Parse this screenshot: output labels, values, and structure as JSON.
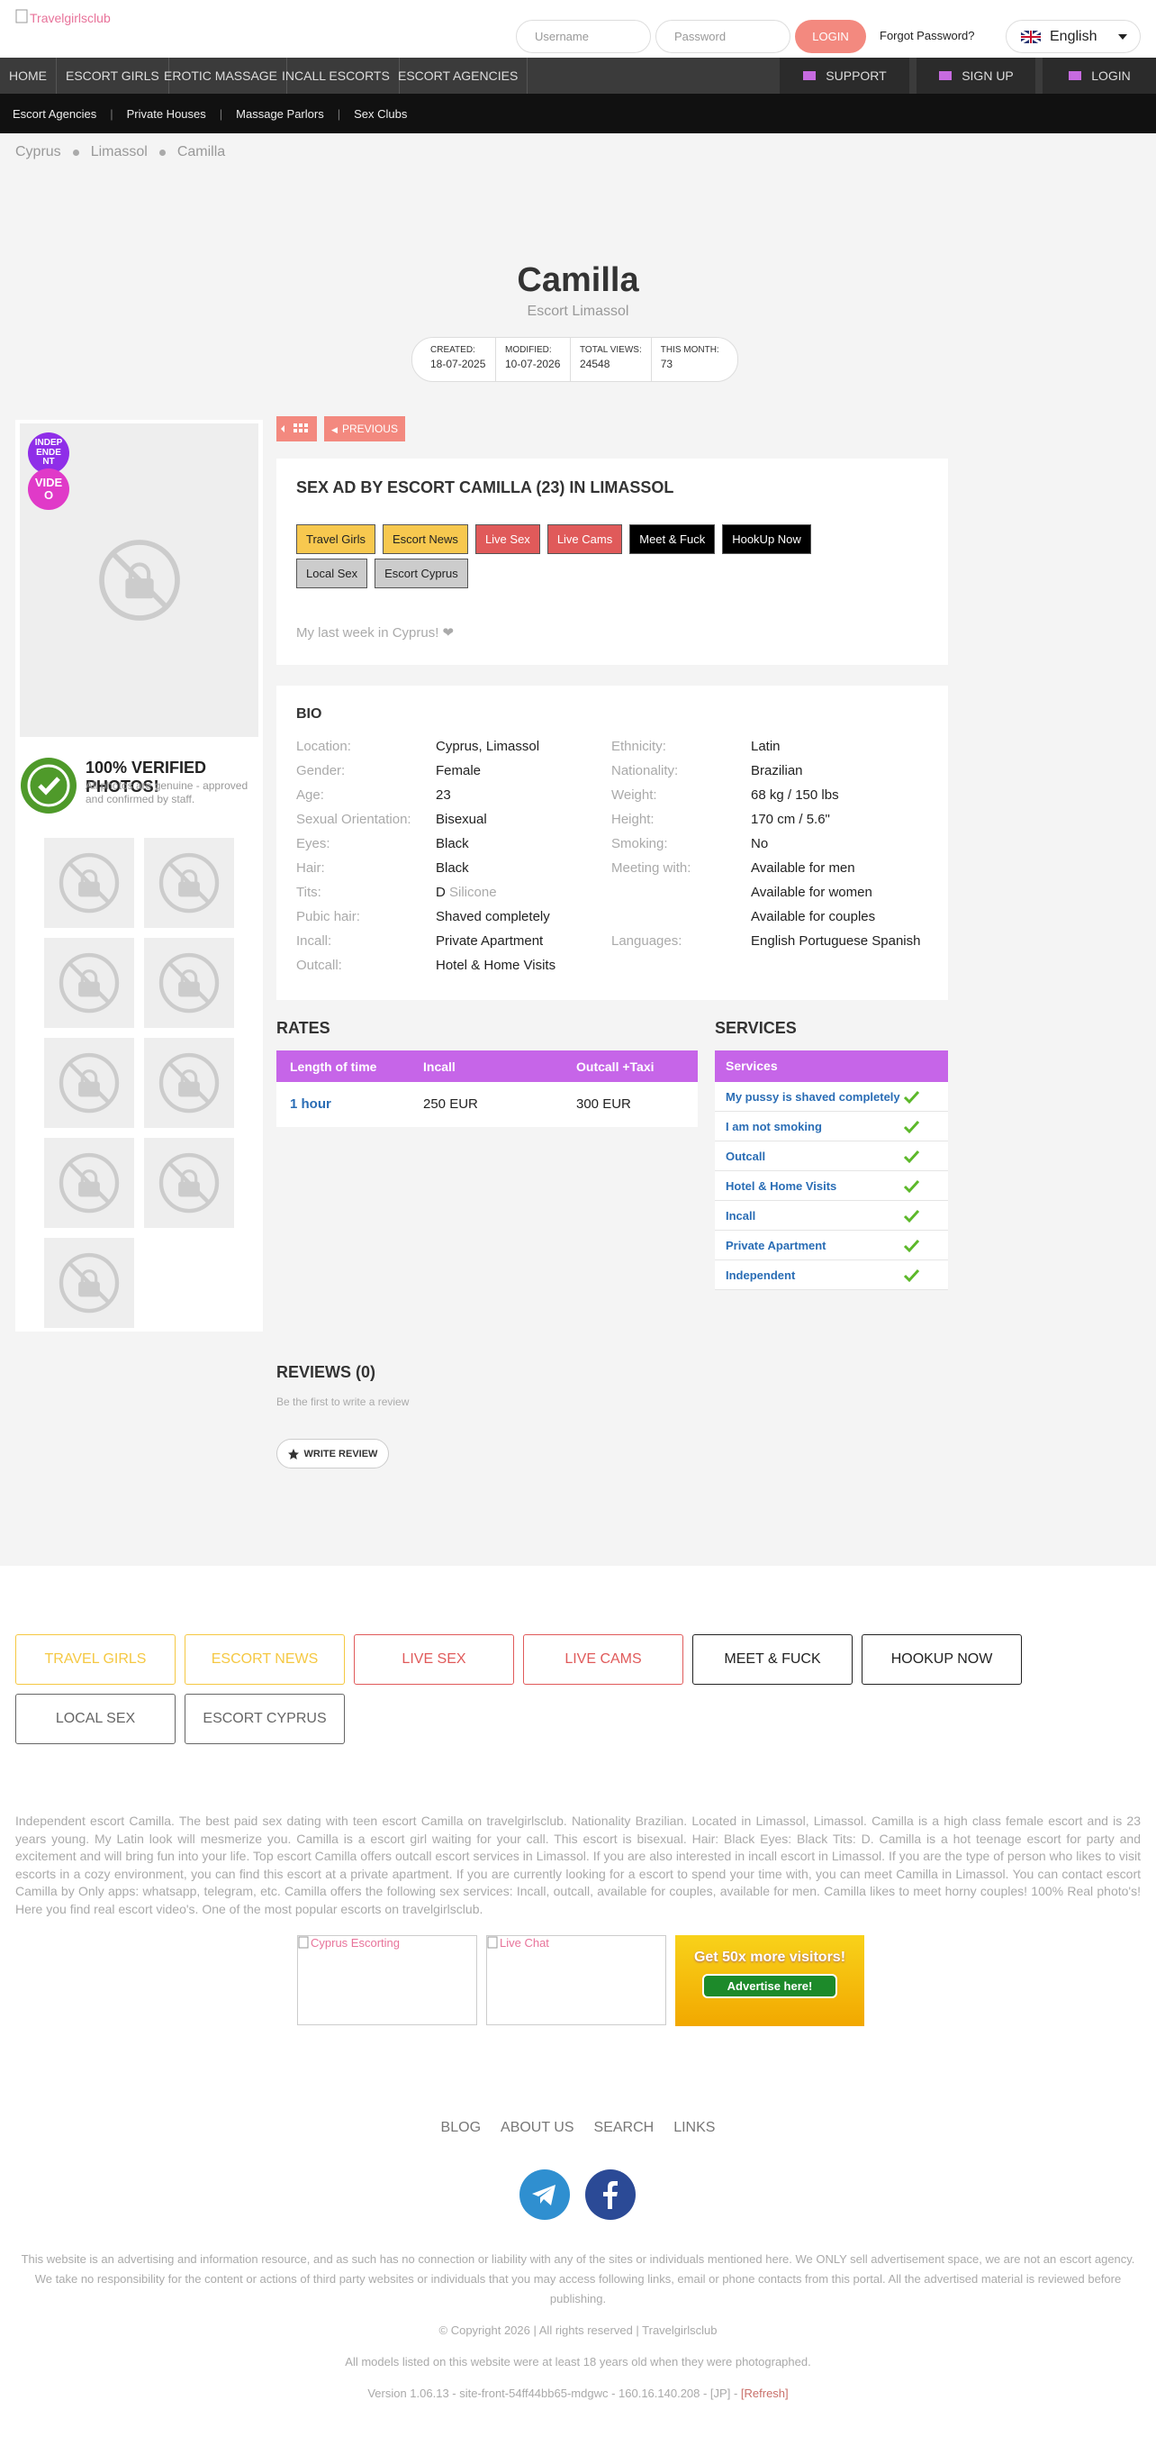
{
  "header": {
    "logo": "Travelgirlsclub",
    "username": "Username",
    "password": "Password",
    "login": "LOGIN",
    "forgot": "Forgot Password?",
    "language": "English"
  },
  "nav": {
    "items": [
      "HOME",
      "ESCORT GIRLS",
      "EROTIC MASSAGE",
      "INCALL ESCORTS",
      "ESCORT AGENCIES"
    ],
    "support": "SUPPORT",
    "signup": "SIGN UP",
    "login": "LOGIN"
  },
  "subnav": [
    "Escort Agencies",
    "Private Houses",
    "Massage Parlors",
    "Sex Clubs"
  ],
  "breadcrumb": [
    "Cyprus",
    "Limassol",
    "Camilla"
  ],
  "profile": {
    "name": "Camilla",
    "subtitle": "Escort Limassol",
    "stats": [
      {
        "label": "CREATED:",
        "value": "18-07-2025"
      },
      {
        "label": "MODIFIED:",
        "value": "10-07-2026"
      },
      {
        "label": "TOTAL VIEWS:",
        "value": "24548"
      },
      {
        "label": "THIS MONTH:",
        "value": "73"
      }
    ],
    "badges": [
      "INDEPENDENT",
      "VIDEO"
    ],
    "verified": {
      "title": "100% VERIFIED PHOTOS!",
      "text": "All photos are genuine - approved and confirmed by staff."
    },
    "previous": "PREVIOUS",
    "ad_title": "SEX AD BY ESCORT CAMILLA (23) IN LIMASSOL",
    "tags": [
      "Travel Girls",
      "Escort News",
      "Live Sex",
      "Live Cams",
      "Meet & Fuck",
      "HookUp Now",
      "Local Sex",
      "Escort Cyprus"
    ],
    "description": "My last week in Cyprus! ❤",
    "bio_title": "BIO",
    "bio_left": [
      {
        "label": "Location:",
        "value": "Cyprus, Limassol"
      },
      {
        "label": "Gender:",
        "value": "Female"
      },
      {
        "label": "Age:",
        "value": "23"
      },
      {
        "label": "Sexual Orientation:",
        "value": "Bisexual"
      },
      {
        "label": "Eyes:",
        "value": "Black"
      },
      {
        "label": "Hair:",
        "value": "Black"
      },
      {
        "label": "Tits:",
        "value": "D",
        "note": "Silicone"
      },
      {
        "label": "Pubic hair:",
        "value": "Shaved completely"
      },
      {
        "label": "Incall:",
        "value": "Private Apartment"
      },
      {
        "label": "Outcall:",
        "value": "Hotel & Home Visits"
      }
    ],
    "bio_right": [
      {
        "label": "Ethnicity:",
        "values": [
          "Latin"
        ]
      },
      {
        "label": "Nationality:",
        "values": [
          "Brazilian"
        ]
      },
      {
        "label": "Weight:",
        "values": [
          "68 kg / 150 lbs"
        ]
      },
      {
        "label": "Height:",
        "values": [
          "170 cm / 5.6\""
        ]
      },
      {
        "label": "Smoking:",
        "values": [
          "No"
        ]
      },
      {
        "label": "Meeting with:",
        "values": [
          "Available for men",
          "Available for women",
          "Available for couples"
        ]
      },
      {
        "label": "Languages:",
        "values": [
          "English Portuguese Spanish"
        ]
      }
    ]
  },
  "rates": {
    "title": "RATES",
    "headers": [
      "Length of time",
      "Incall",
      "Outcall +Taxi"
    ],
    "rows": [
      [
        "1 hour",
        "250 EUR",
        "300 EUR"
      ]
    ]
  },
  "services": {
    "title": "SERVICES",
    "header": "Services",
    "items": [
      "My pussy is shaved completely",
      "I am not smoking",
      "Outcall",
      "Hotel & Home Visits",
      "Incall",
      "Private Apartment",
      "Independent"
    ]
  },
  "reviews": {
    "title": "REVIEWS (0)",
    "text": "Be the first to write a review",
    "button": "WRITE REVIEW"
  },
  "footer_buttons": [
    "TRAVEL GIRLS",
    "ESCORT NEWS",
    "LIVE SEX",
    "LIVE CAMS",
    "MEET & FUCK",
    "HOOKUP NOW",
    "LOCAL SEX",
    "ESCORT CYPRUS"
  ],
  "seo_text": "Independent escort Camilla. The best paid sex dating with teen escort Camilla on travelgirlsclub. Nationality Brazilian. Located in Limassol, Limassol. Camilla is a high class female escort and is 23 years young. My Latin look will mesmerize you. Camilla is a escort girl waiting for your call. This escort is bisexual. Hair: Black Eyes: Black Tits: D. Camilla is a hot teenage escort for party and excitement and will bring fun into your life. Top escort Camilla offers outcall escort services in Limassol. If you are also interested in incall escort in Limassol. If you are the type of person who likes to visit escorts in a cozy environment, you can find this escort at a private apartment. If you are currently looking for a escort to spend your time with, you can meet Camilla in Limassol. You can contact escort Camilla by Only apps: whatsapp, telegram, etc. Camilla offers the following sex services: Incall, outcall, available for couples, available for men. Camilla likes to meet horny couples! 100% Real photo's! Here you find real escort video's. One of the most popular escorts on travelgirlsclub.",
  "ads": [
    "Cyprus Escorting",
    "Live Chat"
  ],
  "advertise": {
    "title": "Get 50x more visitors!",
    "button": "Advertise here!"
  },
  "footer_links": [
    "BLOG",
    "ABOUT US",
    "SEARCH",
    "LINKS"
  ],
  "disclaimer": "This website is an advertising and information resource, and as such has no connection or liability with any of the sites or individuals mentioned here. We ONLY sell advertisement space, we are not an escort agency. We take no responsibility for the content or actions of third party websites or individuals that you may access following links, email or phone contacts from this portal. All the advertised material is reviewed before publishing.",
  "copyright": "© Copyright 2026 | All rights reserved | Travelgirlsclub",
  "models_note": "All models listed on this website were at least 18 years old when they were photographed.",
  "version": "Version 1.06.13 - site-front-54ff44bb65-mdgwc - 160.16.140.208 - [JP] -",
  "refresh": "[Refresh]"
}
